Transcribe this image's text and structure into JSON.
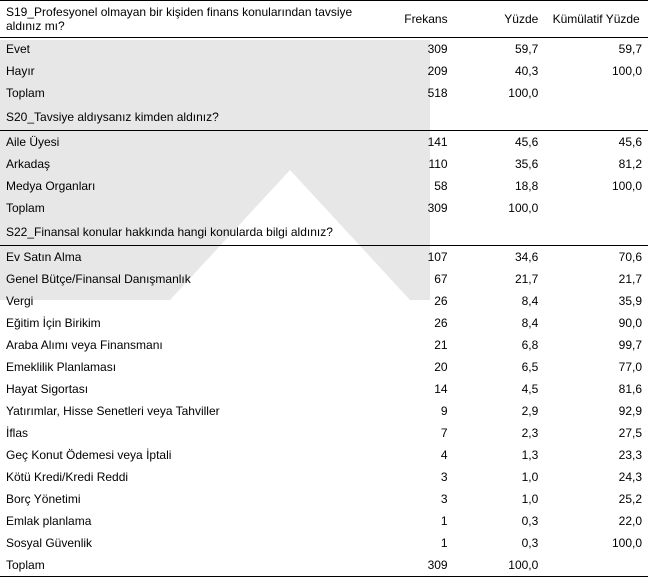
{
  "watermark_color": "#e7e7e7",
  "columns": {
    "freq": "Frekans",
    "pct": "Yüzde",
    "cum": "Kümülatif Yüzde"
  },
  "sections": [
    {
      "title": "S19_Profesyonel olmayan bir kişiden finans konularından tavsiye aldınız mı?",
      "rows": [
        {
          "label": "Evet",
          "freq": "309",
          "pct": "59,7",
          "cum": "59,7"
        },
        {
          "label": "Hayır",
          "freq": "209",
          "pct": "40,3",
          "cum": "100,0"
        },
        {
          "label": "Toplam",
          "freq": "518",
          "pct": "100,0",
          "cum": ""
        }
      ]
    },
    {
      "title": "S20_Tavsiye aldıysanız kimden aldınız?",
      "rows": [
        {
          "label": "Aile Üyesi",
          "freq": "141",
          "pct": "45,6",
          "cum": "45,6"
        },
        {
          "label": "Arkadaş",
          "freq": "110",
          "pct": "35,6",
          "cum": "81,2"
        },
        {
          "label": "Medya Organları",
          "freq": "58",
          "pct": "18,8",
          "cum": "100,0"
        },
        {
          "label": "Toplam",
          "freq": "309",
          "pct": "100,0",
          "cum": ""
        }
      ]
    },
    {
      "title": "S22_Finansal konular hakkında hangi konularda bilgi aldınız?",
      "rows": [
        {
          "label": "Ev Satın Alma",
          "freq": "107",
          "pct": "34,6",
          "cum": "70,6"
        },
        {
          "label": "Genel Bütçe/Finansal Danışmanlık",
          "freq": "67",
          "pct": "21,7",
          "cum": "21,7"
        },
        {
          "label": "Vergi",
          "freq": "26",
          "pct": "8,4",
          "cum": "35,9"
        },
        {
          "label": "Eğitim İçin Birikim",
          "freq": "26",
          "pct": "8,4",
          "cum": "90,0"
        },
        {
          "label": "Araba Alımı veya Finansmanı",
          "freq": "21",
          "pct": "6,8",
          "cum": "99,7"
        },
        {
          "label": "Emeklilik Planlaması",
          "freq": "20",
          "pct": "6,5",
          "cum": "77,0"
        },
        {
          "label": "Hayat Sigortası",
          "freq": "14",
          "pct": "4,5",
          "cum": "81,6"
        },
        {
          "label": "Yatırımlar, Hisse Senetleri veya Tahviller",
          "freq": "9",
          "pct": "2,9",
          "cum": "92,9"
        },
        {
          "label": "İflas",
          "freq": "7",
          "pct": "2,3",
          "cum": "27,5"
        },
        {
          "label": "Geç Konut Ödemesi veya İptali",
          "freq": "4",
          "pct": "1,3",
          "cum": "23,3"
        },
        {
          "label": "Kötü Kredi/Kredi Reddi",
          "freq": "3",
          "pct": "1,0",
          "cum": "24,3"
        },
        {
          "label": "Borç Yönetimi",
          "freq": "3",
          "pct": "1,0",
          "cum": "25,2"
        },
        {
          "label": "Emlak planlama",
          "freq": "1",
          "pct": "0,3",
          "cum": "22,0"
        },
        {
          "label": "Sosyal Güvenlik",
          "freq": "1",
          "pct": "0,3",
          "cum": "100,0"
        },
        {
          "label": "Toplam",
          "freq": "309",
          "pct": "100,0",
          "cum": ""
        }
      ]
    }
  ]
}
